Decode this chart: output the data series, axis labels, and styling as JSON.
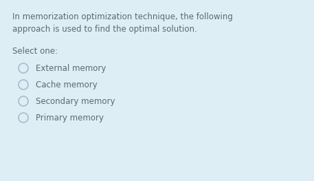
{
  "background_color": "#ddeef4",
  "text_color": "#5a6a72",
  "question_line1": "In memorization optimization technique, the following",
  "question_line2": "approach is used to find the optimal solution.",
  "select_label": "Select one:",
  "options": [
    "External memory",
    "Cache memory",
    "Secondary memory",
    "Primary memory"
  ],
  "radio_edge_color": "#aabbcc",
  "radio_fill_color": "#ddeef4",
  "font_size": 8.5,
  "figwidth": 4.57,
  "figheight": 2.63,
  "dpi": 100
}
